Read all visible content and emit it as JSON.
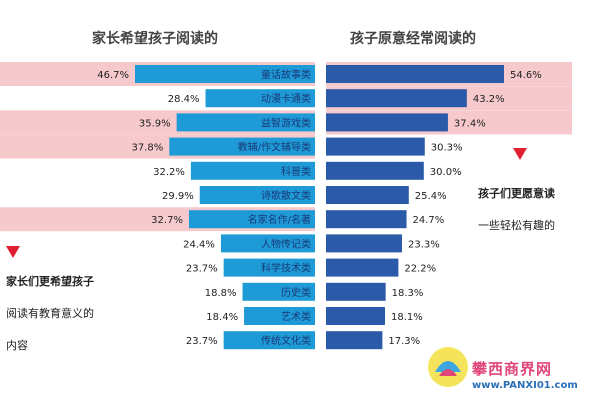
{
  "titles": {
    "left": "家长希望孩子阅读的",
    "right": "孩子原意经常阅读的"
  },
  "notes": {
    "left_line1": "家长们更希望孩子",
    "left_line2": "阅读有教育意义的",
    "left_line3": "内容",
    "right_line1": "孩子们更愿意读",
    "right_line2": "一些轻松有趣的"
  },
  "watermark": {
    "text": "攀西商界网",
    "url": "www.PANXI01.com"
  },
  "colors": {
    "left_bar": "#1e9ad6",
    "right_bar": "#2b5aa8",
    "highlight": "#f6c9cc",
    "marker": "#e02030",
    "category_text": "#1a3a7a"
  },
  "chart_data": {
    "type": "bar",
    "categories": [
      "童话故事类",
      "动漫卡通类",
      "益智游戏类",
      "教辅/作文辅导类",
      "科普类",
      "诗歌散文类",
      "名家名作/名著",
      "人物传记类",
      "科学技术类",
      "历史类",
      "艺术类",
      "传统文化类"
    ],
    "series": [
      {
        "name": "家长希望孩子阅读的",
        "values": [
          46.7,
          28.4,
          35.9,
          37.8,
          32.2,
          29.9,
          32.7,
          24.4,
          23.7,
          18.8,
          18.4,
          23.7
        ]
      },
      {
        "name": "孩子原意经常阅读的",
        "values": [
          54.6,
          43.2,
          37.4,
          30.3,
          30.0,
          25.4,
          24.7,
          23.3,
          22.2,
          18.3,
          18.1,
          17.3
        ]
      }
    ],
    "value_labels": {
      "left": [
        "46.7%",
        "28.4%",
        "35.9%",
        "37.8%",
        "32.2%",
        "29.9%",
        "32.7%",
        "24.4%",
        "23.7%",
        "18.8%",
        "18.4%",
        "23.7%"
      ],
      "right": [
        "54.6%",
        "43.2%",
        "37.4%",
        "30.3%",
        "30.0%",
        "25.4%",
        "24.7%",
        "23.3%",
        "22.2%",
        "18.3%",
        "18.1%",
        "17.3%"
      ]
    },
    "highlighted_rows": {
      "left": [
        0,
        2,
        3,
        6
      ],
      "right": [
        0,
        1,
        2
      ]
    },
    "ylim": [
      0,
      60
    ]
  }
}
